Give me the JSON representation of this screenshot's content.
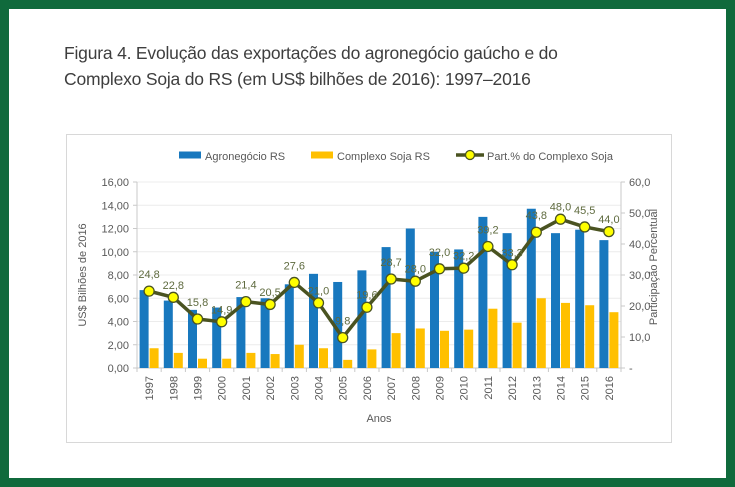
{
  "caption": {
    "line1": "Figura 4. Evolução das exportações do agronegócio gaúcho e do",
    "line2": "Complexo Soja do RS (em US$ bilhões de 2016): 1997–2016"
  },
  "frame_color": "#106A3C",
  "chart_data": {
    "type": "combo bar + line",
    "categories": [
      "1997",
      "1998",
      "1999",
      "2000",
      "2001",
      "2002",
      "2003",
      "2004",
      "2005",
      "2006",
      "2007",
      "2008",
      "2009",
      "2010",
      "2011",
      "2012",
      "2013",
      "2014",
      "2015",
      "2016"
    ],
    "series": [
      {
        "name": "Agronegócio RS",
        "type": "bar",
        "axis": "left",
        "color": "#1878BE",
        "values": [
          6.7,
          5.8,
          5.0,
          5.2,
          6.1,
          6.0,
          7.2,
          8.1,
          7.4,
          8.4,
          10.4,
          12.0,
          10.0,
          10.2,
          13.0,
          11.6,
          13.7,
          11.6,
          11.9,
          11.0
        ]
      },
      {
        "name": "Complexo Soja RS",
        "type": "bar",
        "axis": "left",
        "color": "#FFC000",
        "values": [
          1.7,
          1.3,
          0.8,
          0.8,
          1.3,
          1.2,
          2.0,
          1.7,
          0.7,
          1.6,
          3.0,
          3.4,
          3.2,
          3.3,
          5.1,
          3.9,
          6.0,
          5.6,
          5.4,
          4.8
        ]
      },
      {
        "name": "Part.% do Complexo Soja",
        "type": "line",
        "axis": "right",
        "color": "#4A5321",
        "marker_fill": "#FFFF00",
        "values": [
          24.8,
          22.8,
          15.8,
          14.9,
          21.4,
          20.5,
          27.6,
          21.0,
          9.8,
          19.6,
          28.7,
          28.0,
          32.0,
          32.2,
          39.2,
          33.3,
          43.8,
          48.0,
          45.5,
          44.0
        ],
        "point_labels": [
          "24,8",
          "22,8",
          "15,8",
          "14,9",
          "21,4",
          "20,5",
          "27,6",
          "21,0",
          "9,8",
          "19,6",
          "28,7",
          "28,0",
          "32,0",
          "32,2",
          "39,2",
          "33,3",
          "43,8",
          "48,0",
          "45,5",
          "44,0"
        ]
      }
    ],
    "left_axis": {
      "title": "US$ Bilhões de 2016",
      "min": 0,
      "max": 16,
      "step": 2,
      "tick_labels": [
        "0,00",
        "2,00",
        "4,00",
        "6,00",
        "8,00",
        "10,00",
        "12,00",
        "14,00",
        "16,00"
      ]
    },
    "right_axis": {
      "title": "Participação Percentual",
      "min": 0,
      "max": 60,
      "step": 10,
      "tick_labels": [
        "-",
        "10,0",
        "20,0",
        "30,0",
        "40,0",
        "50,0",
        "60,0"
      ]
    },
    "x_axis": {
      "title": "Anos"
    },
    "legend_position": "top",
    "grid": "horizontal",
    "label_color": "#5E6A3E",
    "axis_text_color": "#595959"
  }
}
